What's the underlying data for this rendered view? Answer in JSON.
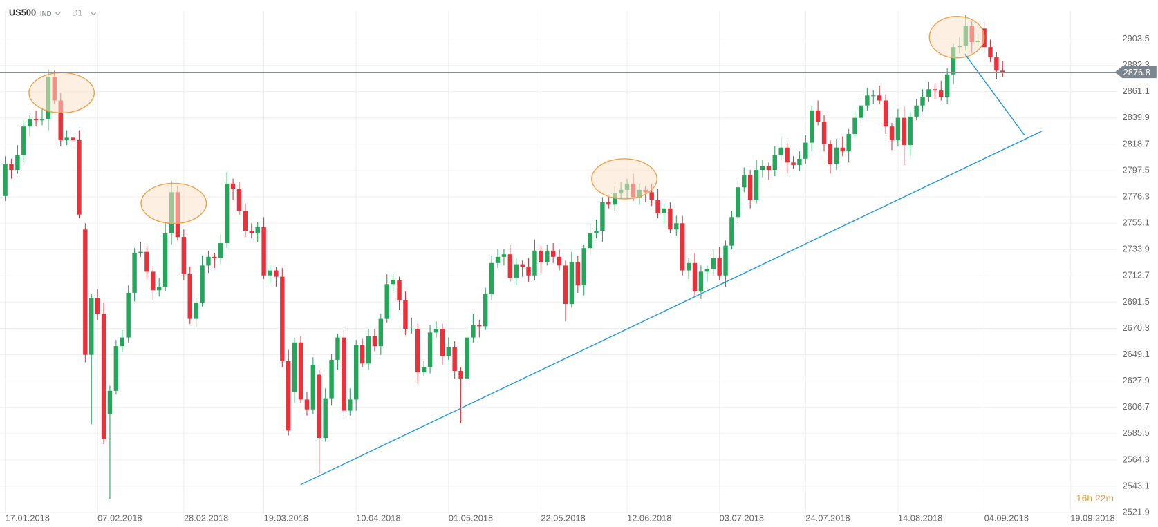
{
  "header": {
    "symbol": "US500",
    "market": "IND",
    "timeframe": "D1"
  },
  "chart_data": {
    "type": "candlestick",
    "xlim": [
      -0.85,
      180.6
    ],
    "xticks": [
      {
        "value": 0,
        "label": "17.01.2018"
      },
      {
        "value": 15,
        "label": "07.02.2018"
      },
      {
        "value": 29,
        "label": "28.02.2018"
      },
      {
        "value": 42,
        "label": "19.03.2018"
      },
      {
        "value": 57,
        "label": "10.04.2018"
      },
      {
        "value": 72,
        "label": "01.05.2018"
      },
      {
        "value": 87,
        "label": "22.05.2018"
      },
      {
        "value": 101,
        "label": "12.06.2018"
      },
      {
        "value": 116,
        "label": "03.07.2018"
      },
      {
        "value": 130,
        "label": "24.07.2018"
      },
      {
        "value": 145,
        "label": "14.08.2018"
      },
      {
        "value": 159,
        "label": "04.09.2018"
      },
      {
        "value": 173,
        "label": "19.09.2018"
      }
    ],
    "ylim": [
      2521,
      2926
    ],
    "yticks": [
      2521.9,
      2543.1,
      2564.3,
      2585.5,
      2606.7,
      2627.9,
      2649.1,
      2670.3,
      2691.5,
      2712.7,
      2733.9,
      2755.1,
      2776.3,
      2797.5,
      2818.7,
      2839.9,
      2861.1,
      2882.3,
      2903.5
    ],
    "grid": true,
    "up_color": "#26a65b",
    "down_color": "#e8313a",
    "open": [
      2777,
      2803,
      2798,
      2810,
      2833,
      2839,
      2838,
      2839,
      2873,
      2854,
      2822,
      2824,
      2822,
      2750,
      2649,
      2695,
      2682,
      2601,
      2620,
      2656,
      2663,
      2699,
      2731,
      2732,
      2716,
      2701,
      2704,
      2747,
      2780,
      2744,
      2714,
      2678,
      2691,
      2721,
      2728,
      2727,
      2739,
      2787,
      2783,
      2765,
      2749,
      2747,
      2752,
      2713,
      2717,
      2712,
      2644,
      2619,
      2659,
      2613,
      2605,
      2633,
      2582,
      2614,
      2645,
      2663,
      2604,
      2613,
      2657,
      2642,
      2664,
      2656,
      2678,
      2706,
      2709,
      2693,
      2670,
      2670,
      2635,
      2639,
      2667,
      2670,
      2648,
      2655,
      2636,
      2630,
      2663,
      2673,
      2672,
      2698,
      2723,
      2728,
      2730,
      2711,
      2722,
      2720,
      2713,
      2733,
      2724,
      2733,
      2728,
      2721,
      2690,
      2724,
      2705,
      2735,
      2747,
      2749,
      2772,
      2770,
      2779,
      2782,
      2787,
      2776,
      2782,
      2780,
      2774,
      2763,
      2767,
      2750,
      2755,
      2717,
      2723,
      2700,
      2716,
      2718,
      2727,
      2713,
      2737,
      2760,
      2784,
      2794,
      2774,
      2798,
      2801,
      2798,
      2810,
      2816,
      2804,
      2802,
      2807,
      2820,
      2846,
      2837,
      2819,
      2803,
      2816,
      2813,
      2827,
      2840,
      2850,
      2858,
      2858,
      2854,
      2833,
      2822,
      2840,
      2818,
      2841,
      2850,
      2857,
      2863,
      2862,
      2857,
      2875,
      2897,
      2898,
      2914,
      2901,
      2912,
      2897,
      2889,
      2878
    ],
    "high": [
      2809,
      2807,
      2818,
      2838,
      2842,
      2846,
      2848,
      2879,
      2878,
      2860,
      2830,
      2828,
      2830,
      2755,
      2698,
      2702,
      2691,
      2624,
      2661,
      2669,
      2705,
      2735,
      2740,
      2737,
      2719,
      2711,
      2756,
      2789,
      2785,
      2750,
      2720,
      2695,
      2729,
      2733,
      2731,
      2746,
      2796,
      2791,
      2788,
      2771,
      2755,
      2756,
      2760,
      2722,
      2720,
      2719,
      2653,
      2663,
      2664,
      2619,
      2647,
      2637,
      2622,
      2650,
      2666,
      2670,
      2622,
      2661,
      2662,
      2670,
      2670,
      2682,
      2714,
      2714,
      2712,
      2700,
      2679,
      2674,
      2644,
      2673,
      2676,
      2674,
      2663,
      2660,
      2639,
      2670,
      2682,
      2677,
      2703,
      2729,
      2734,
      2734,
      2738,
      2727,
      2725,
      2727,
      2742,
      2737,
      2738,
      2739,
      2734,
      2725,
      2732,
      2729,
      2738,
      2754,
      2758,
      2776,
      2777,
      2785,
      2788,
      2791,
      2795,
      2787,
      2785,
      2787,
      2783,
      2771,
      2772,
      2761,
      2761,
      2727,
      2731,
      2721,
      2721,
      2734,
      2736,
      2741,
      2765,
      2790,
      2800,
      2798,
      2806,
      2806,
      2804,
      2817,
      2825,
      2820,
      2809,
      2813,
      2826,
      2850,
      2854,
      2842,
      2822,
      2823,
      2825,
      2831,
      2845,
      2856,
      2864,
      2862,
      2866,
      2859,
      2836,
      2847,
      2849,
      2845,
      2855,
      2863,
      2869,
      2867,
      2870,
      2880,
      2900,
      2905,
      2923,
      2918,
      2907,
      2918,
      2903,
      2893,
      2886
    ],
    "low": [
      2773,
      2791,
      2795,
      2804,
      2825,
      2833,
      2834,
      2830,
      2851,
      2817,
      2818,
      2815,
      2759,
      2643,
      2593,
      2677,
      2577,
      2533,
      2617,
      2651,
      2659,
      2692,
      2728,
      2710,
      2693,
      2696,
      2700,
      2738,
      2741,
      2709,
      2674,
      2671,
      2688,
      2715,
      2719,
      2722,
      2735,
      2774,
      2762,
      2744,
      2743,
      2740,
      2710,
      2707,
      2704,
      2639,
      2584,
      2610,
      2610,
      2600,
      2601,
      2553,
      2579,
      2608,
      2637,
      2599,
      2600,
      2604,
      2639,
      2637,
      2652,
      2649,
      2675,
      2700,
      2685,
      2665,
      2666,
      2626,
      2632,
      2634,
      2663,
      2641,
      2645,
      2630,
      2594,
      2625,
      2659,
      2663,
      2669,
      2693,
      2719,
      2721,
      2708,
      2705,
      2712,
      2708,
      2709,
      2715,
      2721,
      2723,
      2717,
      2676,
      2687,
      2699,
      2697,
      2730,
      2743,
      2740,
      2767,
      2765,
      2775,
      2775,
      2773,
      2770,
      2772,
      2769,
      2759,
      2754,
      2747,
      2745,
      2713,
      2710,
      2697,
      2694,
      2708,
      2713,
      2709,
      2704,
      2734,
      2755,
      2780,
      2767,
      2771,
      2792,
      2790,
      2793,
      2806,
      2795,
      2799,
      2797,
      2803,
      2813,
      2834,
      2813,
      2795,
      2798,
      2809,
      2804,
      2824,
      2835,
      2846,
      2851,
      2851,
      2827,
      2814,
      2817,
      2802,
      2809,
      2838,
      2845,
      2853,
      2855,
      2854,
      2851,
      2867,
      2892,
      2894,
      2892,
      2898,
      2892,
      2885,
      2871,
      2873
    ],
    "close": [
      2803,
      2798,
      2810,
      2833,
      2839,
      2838,
      2839,
      2873,
      2854,
      2822,
      2824,
      2822,
      2762,
      2649,
      2695,
      2682,
      2581,
      2620,
      2656,
      2663,
      2699,
      2731,
      2732,
      2716,
      2701,
      2704,
      2747,
      2780,
      2744,
      2714,
      2678,
      2691,
      2721,
      2728,
      2727,
      2739,
      2787,
      2783,
      2765,
      2749,
      2747,
      2752,
      2713,
      2717,
      2712,
      2644,
      2588,
      2659,
      2613,
      2605,
      2641,
      2582,
      2614,
      2645,
      2663,
      2604,
      2613,
      2657,
      2642,
      2664,
      2656,
      2678,
      2706,
      2709,
      2693,
      2670,
      2670,
      2635,
      2639,
      2667,
      2670,
      2648,
      2655,
      2636,
      2630,
      2663,
      2673,
      2672,
      2698,
      2723,
      2728,
      2730,
      2711,
      2722,
      2720,
      2713,
      2733,
      2724,
      2733,
      2728,
      2721,
      2690,
      2724,
      2705,
      2735,
      2747,
      2749,
      2772,
      2770,
      2779,
      2782,
      2787,
      2776,
      2782,
      2780,
      2774,
      2763,
      2767,
      2750,
      2755,
      2717,
      2723,
      2700,
      2716,
      2718,
      2727,
      2713,
      2737,
      2760,
      2784,
      2794,
      2774,
      2798,
      2801,
      2798,
      2810,
      2816,
      2804,
      2802,
      2807,
      2820,
      2846,
      2837,
      2819,
      2803,
      2816,
      2813,
      2827,
      2840,
      2850,
      2858,
      2858,
      2854,
      2833,
      2822,
      2840,
      2818,
      2841,
      2850,
      2857,
      2863,
      2862,
      2857,
      2875,
      2897,
      2898,
      2914,
      2901,
      2902,
      2897,
      2889,
      2878,
      2876
    ],
    "last_price": 2876.8,
    "countdown": "16h 22m"
  }
}
